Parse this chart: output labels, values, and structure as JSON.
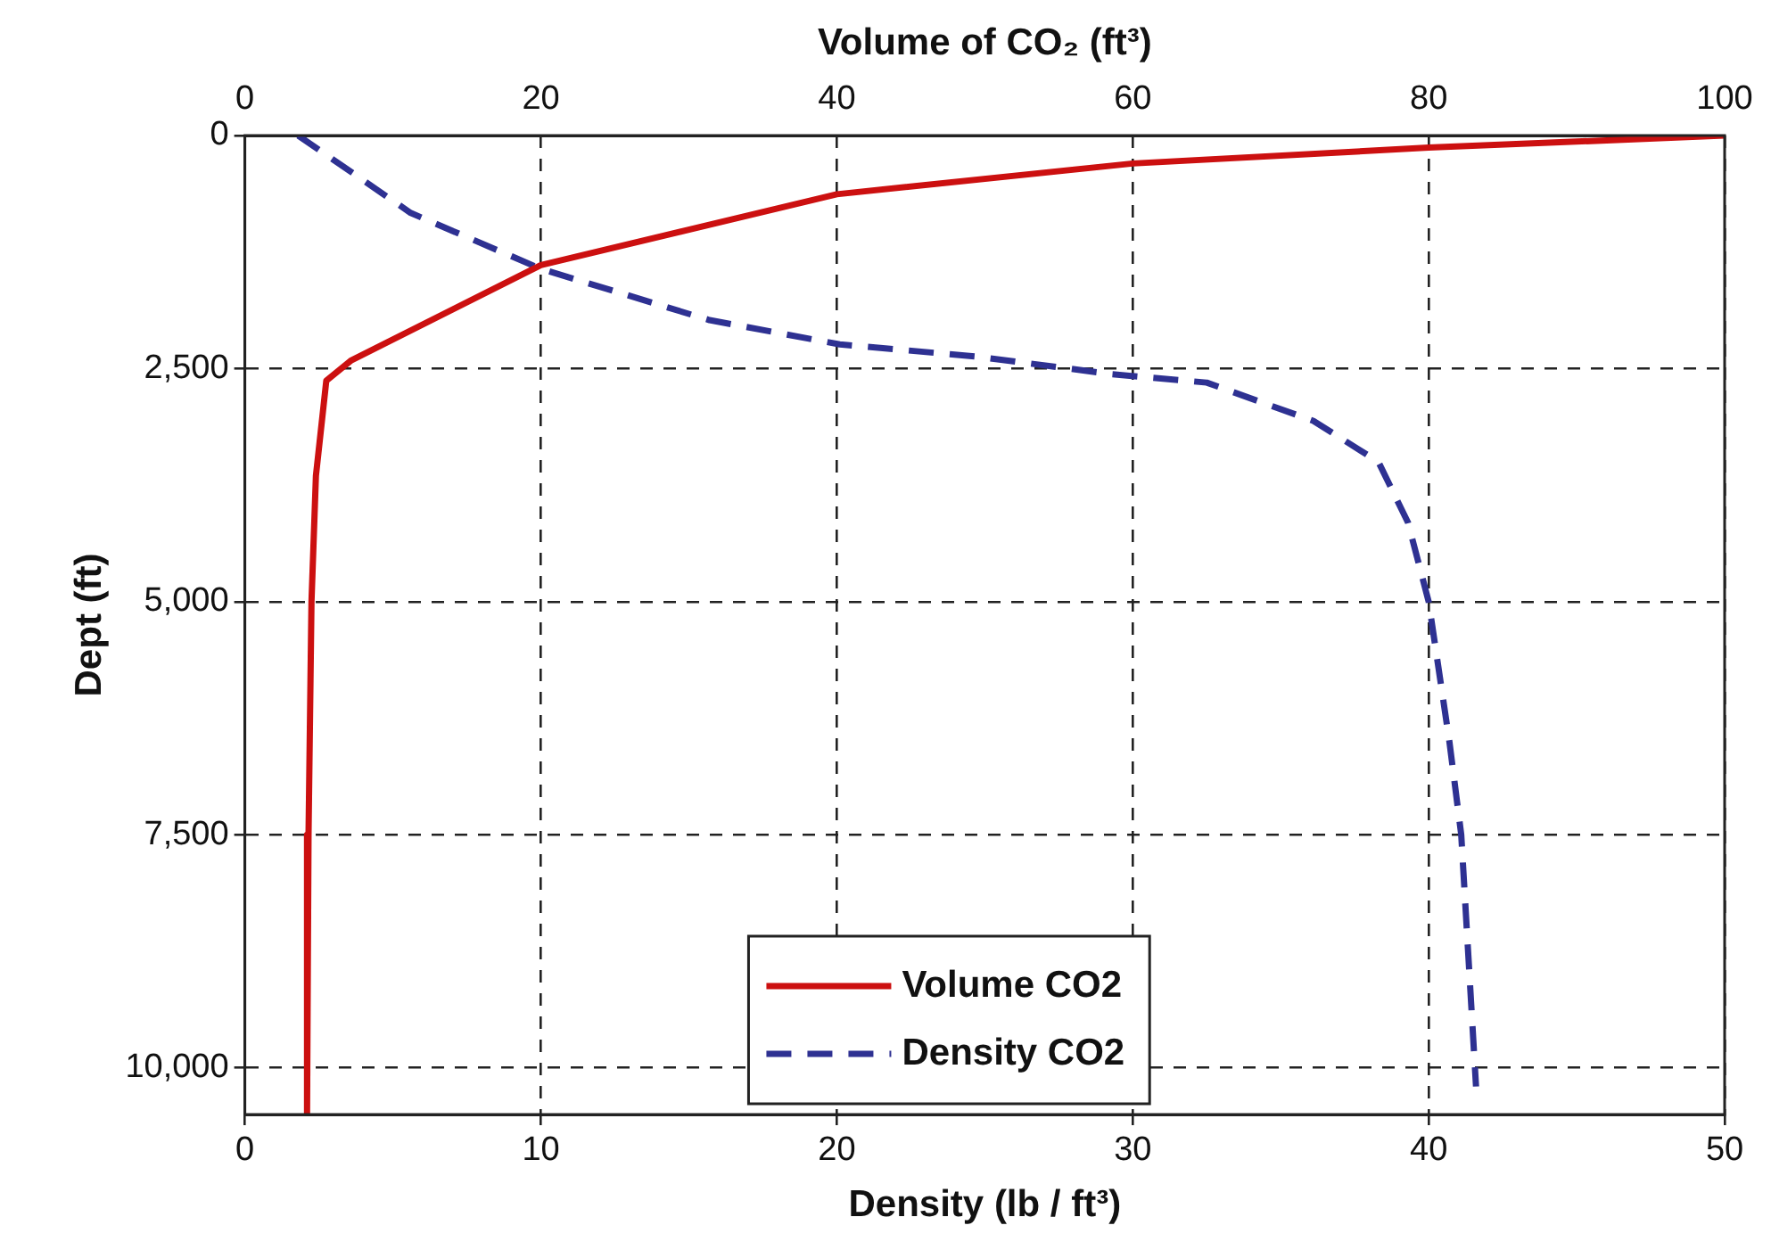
{
  "chart_data": {
    "type": "line",
    "x2label": "Volume of CO₂ (ft³)",
    "xlabel": "Density (lb / ft³)",
    "ylabel": "Dept (ft)",
    "xlim": [
      0,
      50
    ],
    "xticks": [
      0,
      10,
      20,
      30,
      40,
      50
    ],
    "x2lim": [
      0,
      100
    ],
    "x2ticks": [
      0,
      20,
      40,
      60,
      80,
      100
    ],
    "ylim": [
      10500,
      0
    ],
    "yticks": [
      0,
      {
        "value": 2500,
        "label": "2,500"
      },
      {
        "value": 5000,
        "label": "5,000"
      },
      {
        "value": 7500,
        "label": "7,500"
      },
      {
        "value": 10000,
        "label": "10,000"
      }
    ],
    "series": [
      {
        "name": "Volume CO2",
        "color": "#cc1010",
        "axis": "x2",
        "line_style": "solid",
        "x": [
          100,
          80,
          60,
          40,
          20,
          7.2,
          5.5,
          4.8,
          4.5,
          4.3,
          4.2
        ],
        "values": [
          0,
          130,
          300,
          630,
          1390,
          2410,
          2630,
          3650,
          5000,
          7500,
          10500
        ]
      },
      {
        "name": "Density CO2",
        "color": "#2e3192",
        "line_style": "dashed",
        "x": [
          1.8,
          5.6,
          10,
          15.7,
          20.1,
          24.7,
          29.3,
          32.5,
          36.1,
          38.3,
          39.3,
          40,
          40.7,
          41.1,
          41.6
        ],
        "values": [
          0,
          830,
          1430,
          1980,
          2240,
          2370,
          2560,
          2650,
          3060,
          3500,
          4150,
          5000,
          6500,
          7500,
          10200
        ]
      }
    ],
    "grid": true,
    "legend": "bottom",
    "marker": "none"
  }
}
